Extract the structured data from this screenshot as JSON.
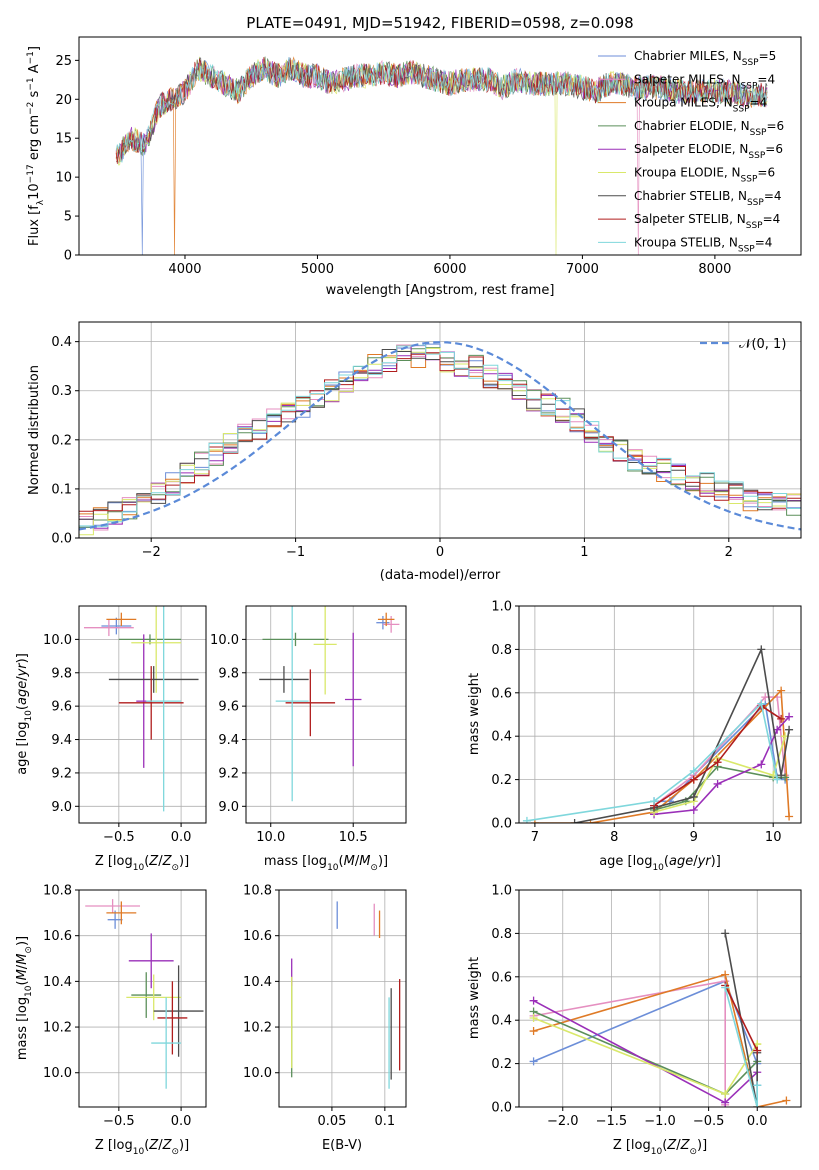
{
  "figure": {
    "title": "PLATE=0491, MJD=51942, FIBERID=0598, z=0.098"
  },
  "colors": {
    "Chabrier MILES": "#6c8ed8",
    "Salpeter MILES": "#e58fc0",
    "Kroupa MILES": "#df7a26",
    "Chabrier ELODIE": "#5b8f5a",
    "Salpeter ELODIE": "#9a2fb8",
    "Kroupa ELODIE": "#d9e86a",
    "Chabrier STELIB": "#4c4c4c",
    "Salpeter STELIB": "#b01d1d",
    "Kroupa STELIB": "#7fd7dc",
    "normal": "#5b8ad8"
  },
  "chart_data": [
    {
      "id": "spectrum",
      "type": "line",
      "title": "PLATE=0491, MJD=51942, FIBERID=0598, z=0.098",
      "xlabel": "wavelength [Angstrom, rest frame]",
      "ylabel": "Flux [f_λ 10^-17 erg cm^-2 s^-1 A^-1]",
      "xlim": [
        3200,
        8650
      ],
      "ylim": [
        0,
        28
      ],
      "xticks": [
        4000,
        5000,
        6000,
        7000,
        8000
      ],
      "yticks": [
        0,
        5,
        10,
        15,
        20,
        25
      ],
      "grid": false,
      "legend": "top-right",
      "x": [
        3500,
        3600,
        3700,
        3800,
        3900,
        4000,
        4100,
        4200,
        4300,
        4400,
        4500,
        4600,
        4700,
        4800,
        4900,
        5000,
        5100,
        5200,
        5300,
        5400,
        5500,
        5600,
        5700,
        5800,
        5900,
        6000,
        6100,
        6200,
        6300,
        6400,
        6500,
        6600,
        6700,
        6800,
        6900,
        7000,
        7100,
        7200,
        7300,
        7400,
        7500,
        7600,
        7700,
        7800,
        7900,
        8000,
        8100,
        8200,
        8300,
        8400
      ],
      "y": [
        13,
        15,
        14,
        19,
        20,
        21,
        24,
        23,
        22,
        21,
        23,
        24,
        23,
        24,
        23,
        23,
        22,
        22.5,
        23,
        23,
        23.5,
        23,
        23.5,
        23,
        22.5,
        22,
        22.5,
        22.5,
        22.5,
        21.5,
        22.5,
        22,
        22,
        22,
        22,
        21.5,
        21,
        22,
        22,
        21.5,
        21.5,
        21.5,
        21,
        21,
        21,
        21,
        21,
        20.5,
        20.5,
        20.5
      ],
      "series": [
        {
          "name": "Chabrier MILES",
          "nssp": "5"
        },
        {
          "name": "Salpeter MILES",
          "nssp": "4"
        },
        {
          "name": "Kroupa MILES",
          "nssp": "4"
        },
        {
          "name": "Chabrier ELODIE",
          "nssp": "6"
        },
        {
          "name": "Salpeter ELODIE",
          "nssp": "6"
        },
        {
          "name": "Kroupa ELODIE",
          "nssp": "6"
        },
        {
          "name": "Chabrier STELIB",
          "nssp": "4"
        },
        {
          "name": "Salpeter STELIB",
          "nssp": "4"
        },
        {
          "name": "Kroupa STELIB",
          "nssp": "4"
        }
      ]
    },
    {
      "id": "residuals",
      "type": "histogram",
      "xlabel": "(data-model)/error",
      "ylabel": "Normed distribution",
      "xlim": [
        -2.5,
        2.5
      ],
      "ylim": [
        0,
        0.44
      ],
      "xticks": [
        -2,
        -1,
        0,
        1,
        2
      ],
      "yticks": [
        0.0,
        0.1,
        0.2,
        0.3,
        0.4
      ],
      "grid": true,
      "legend": "top-right",
      "legend_entry": "𝒩(0, 1)",
      "bin_edges_start": -2.5,
      "bin_width": 0.1,
      "values": [
        0.03,
        0.04,
        0.05,
        0.06,
        0.07,
        0.09,
        0.11,
        0.13,
        0.15,
        0.17,
        0.19,
        0.21,
        0.22,
        0.24,
        0.26,
        0.27,
        0.28,
        0.3,
        0.32,
        0.34,
        0.35,
        0.36,
        0.37,
        0.37,
        0.38,
        0.36,
        0.34,
        0.35,
        0.33,
        0.32,
        0.3,
        0.28,
        0.27,
        0.26,
        0.24,
        0.22,
        0.2,
        0.18,
        0.16,
        0.15,
        0.14,
        0.13,
        0.12,
        0.11,
        0.1,
        0.09,
        0.08,
        0.08,
        0.07,
        0.07
      ]
    },
    {
      "id": "age-vs-Z",
      "type": "errorbar",
      "xlabel": "Z [log10(Z/Z⊙)]",
      "ylabel": "age [log10(age/yr)]",
      "xlim": [
        -0.82,
        0.2
      ],
      "ylim": [
        8.9,
        10.2
      ],
      "xticks": [
        -0.5,
        0.0
      ],
      "yticks": [
        9.0,
        9.2,
        9.4,
        9.6,
        9.8,
        10.0
      ],
      "grid": true,
      "points": [
        {
          "series": "Chabrier MILES",
          "x": -0.52,
          "y": 10.08,
          "xerr": 0.12,
          "yerr": 0.05
        },
        {
          "series": "Salpeter MILES",
          "x": -0.58,
          "y": 10.07,
          "xerr": 0.2,
          "yerr": 0.05
        },
        {
          "series": "Kroupa MILES",
          "x": -0.48,
          "y": 10.12,
          "xerr": 0.12,
          "yerr": 0.04
        },
        {
          "series": "Chabrier ELODIE",
          "x": -0.25,
          "y": 10.0,
          "xerr": 0.25,
          "yerr": 0.03
        },
        {
          "series": "Salpeter ELODIE",
          "x": -0.3,
          "y": 9.63,
          "xerr": 0.06,
          "yerr": 0.4
        },
        {
          "series": "Kroupa ELODIE",
          "x": -0.2,
          "y": 9.98,
          "xerr": 0.2,
          "yerr": 0.3
        },
        {
          "series": "Chabrier STELIB",
          "x": -0.22,
          "y": 9.76,
          "xerr": 0.36,
          "yerr": 0.08
        },
        {
          "series": "Salpeter STELIB",
          "x": -0.24,
          "y": 9.62,
          "xerr": 0.26,
          "yerr": 0.22
        },
        {
          "series": "Kroupa STELIB",
          "x": -0.14,
          "y": 9.63,
          "xerr": 0.14,
          "yerr": 0.66
        }
      ]
    },
    {
      "id": "age-vs-mass",
      "type": "errorbar",
      "xlabel": "mass [log10(M/M⊙)]",
      "ylabel": "",
      "xlim": [
        9.85,
        10.82
      ],
      "ylim": [
        8.9,
        10.2
      ],
      "xticks": [
        10.0,
        10.5
      ],
      "yticks": [
        9.0,
        9.2,
        9.4,
        9.6,
        9.8,
        10.0
      ],
      "grid": true,
      "points": [
        {
          "series": "Chabrier MILES",
          "x": 10.68,
          "y": 10.1,
          "xerr": 0.04,
          "yerr": 0.04
        },
        {
          "series": "Salpeter MILES",
          "x": 10.73,
          "y": 10.09,
          "xerr": 0.05,
          "yerr": 0.05
        },
        {
          "series": "Kroupa MILES",
          "x": 10.7,
          "y": 10.12,
          "xerr": 0.05,
          "yerr": 0.04
        },
        {
          "series": "Chabrier ELODIE",
          "x": 10.15,
          "y": 10.0,
          "xerr": 0.2,
          "yerr": 0.04
        },
        {
          "series": "Salpeter ELODIE",
          "x": 10.5,
          "y": 9.64,
          "xerr": 0.05,
          "yerr": 0.4
        },
        {
          "series": "Kroupa ELODIE",
          "x": 10.33,
          "y": 9.97,
          "xerr": 0.07,
          "yerr": 0.3
        },
        {
          "series": "Chabrier STELIB",
          "x": 10.08,
          "y": 9.76,
          "xerr": 0.15,
          "yerr": 0.08
        },
        {
          "series": "Salpeter STELIB",
          "x": 10.24,
          "y": 9.62,
          "xerr": 0.15,
          "yerr": 0.2
        },
        {
          "series": "Kroupa STELIB",
          "x": 10.13,
          "y": 9.63,
          "xerr": 0.1,
          "yerr": 0.6
        }
      ]
    },
    {
      "id": "mass-weight-vs-age",
      "type": "line",
      "xlabel": "age [log10(age/yr)]",
      "ylabel": "mass weight",
      "xlim": [
        6.8,
        10.35
      ],
      "ylim": [
        0,
        1.0
      ],
      "xticks": [
        7,
        8,
        9,
        10
      ],
      "yticks": [
        0.0,
        0.2,
        0.4,
        0.6,
        0.8,
        1.0
      ],
      "grid": true,
      "series": [
        {
          "name": "Chabrier MILES",
          "x": [
            8.5,
            8.7,
            9.0,
            9.9,
            10.05,
            10.15
          ],
          "y": [
            0.1,
            0.1,
            0.22,
            0.55,
            0.21,
            0.2
          ]
        },
        {
          "name": "Salpeter MILES",
          "x": [
            8.5,
            9.0,
            9.9,
            10.05,
            10.15
          ],
          "y": [
            0.08,
            0.22,
            0.58,
            0.58,
            0.22
          ]
        },
        {
          "name": "Kroupa MILES",
          "x": [
            7.0,
            7.7,
            8.5,
            9.0,
            10.1,
            10.2
          ],
          "y": [
            0.0,
            0.0,
            0.05,
            0.2,
            0.61,
            0.03
          ]
        },
        {
          "name": "Chabrier ELODIE",
          "x": [
            8.5,
            8.9,
            9.3,
            10.0,
            10.15
          ],
          "y": [
            0.06,
            0.1,
            0.26,
            0.21,
            0.21
          ]
        },
        {
          "name": "Salpeter ELODIE",
          "x": [
            8.5,
            9.0,
            9.3,
            9.85,
            10.05,
            10.2
          ],
          "y": [
            0.04,
            0.06,
            0.18,
            0.27,
            0.43,
            0.49
          ]
        },
        {
          "name": "Kroupa ELODIE",
          "x": [
            8.5,
            9.0,
            9.3,
            10.0,
            10.15
          ],
          "y": [
            0.05,
            0.1,
            0.3,
            0.22,
            0.4
          ]
        },
        {
          "name": "Chabrier STELIB",
          "x": [
            7.5,
            8.5,
            9.0,
            9.85,
            10.1,
            10.2
          ],
          "y": [
            0.0,
            0.07,
            0.12,
            0.8,
            0.22,
            0.43
          ]
        },
        {
          "name": "Salpeter STELIB",
          "x": [
            8.5,
            9.0,
            9.3,
            9.85,
            10.1
          ],
          "y": [
            0.08,
            0.2,
            0.28,
            0.54,
            0.48
          ]
        },
        {
          "name": "Kroupa STELIB",
          "x": [
            6.9,
            8.5,
            9.0,
            9.85,
            10.05
          ],
          "y": [
            0.01,
            0.1,
            0.24,
            0.55,
            0.2
          ]
        }
      ]
    },
    {
      "id": "mass-vs-Z",
      "type": "errorbar",
      "xlabel": "Z [log10(Z/Z⊙)]",
      "ylabel": "mass [log10(M/M⊙)]",
      "xlim": [
        -0.82,
        0.2
      ],
      "ylim": [
        9.85,
        10.8
      ],
      "xticks": [
        -0.5,
        0.0
      ],
      "yticks": [
        10.0,
        10.2,
        10.4,
        10.6,
        10.8
      ],
      "grid": true,
      "points": [
        {
          "series": "Chabrier MILES",
          "x": -0.53,
          "y": 10.67,
          "xerr": 0.06,
          "yerr": 0.04
        },
        {
          "series": "Salpeter MILES",
          "x": -0.55,
          "y": 10.73,
          "xerr": 0.22,
          "yerr": 0.03
        },
        {
          "series": "Kroupa MILES",
          "x": -0.48,
          "y": 10.7,
          "xerr": 0.12,
          "yerr": 0.05
        },
        {
          "series": "Chabrier ELODIE",
          "x": -0.28,
          "y": 10.34,
          "xerr": 0.12,
          "yerr": 0.1
        },
        {
          "series": "Salpeter ELODIE",
          "x": -0.24,
          "y": 10.49,
          "xerr": 0.18,
          "yerr": 0.12
        },
        {
          "series": "Kroupa ELODIE",
          "x": -0.22,
          "y": 10.33,
          "xerr": 0.22,
          "yerr": 0.1
        },
        {
          "series": "Chabrier STELIB",
          "x": -0.02,
          "y": 10.27,
          "xerr": 0.2,
          "yerr": 0.2
        },
        {
          "series": "Salpeter STELIB",
          "x": -0.07,
          "y": 10.24,
          "xerr": 0.12,
          "yerr": 0.16
        },
        {
          "series": "Kroupa STELIB",
          "x": -0.12,
          "y": 10.13,
          "xerr": 0.12,
          "yerr": 0.2
        }
      ]
    },
    {
      "id": "mass-vs-EBV",
      "type": "errorbar",
      "xlabel": "E(B-V)",
      "ylabel": "",
      "xlim": [
        0.0,
        0.12
      ],
      "ylim": [
        9.85,
        10.8
      ],
      "xticks": [
        0.05,
        0.1
      ],
      "yticks": [
        10.0,
        10.2,
        10.4,
        10.6,
        10.8
      ],
      "grid": true,
      "points": [
        {
          "series": "Chabrier MILES",
          "x": 0.055,
          "y": 10.69,
          "xerr": 0.0,
          "yerr": 0.06
        },
        {
          "series": "Salpeter MILES",
          "x": 0.09,
          "y": 10.67,
          "xerr": 0.0,
          "yerr": 0.07
        },
        {
          "series": "Kroupa MILES",
          "x": 0.095,
          "y": 10.65,
          "xerr": 0.0,
          "yerr": 0.06
        },
        {
          "series": "Chabrier ELODIE",
          "x": 0.012,
          "y": 10.2,
          "xerr": 0.0,
          "yerr": 0.22
        },
        {
          "series": "Salpeter ELODIE",
          "x": 0.012,
          "y": 10.44,
          "xerr": 0.0,
          "yerr": 0.06
        },
        {
          "series": "Kroupa ELODIE",
          "x": 0.012,
          "y": 10.22,
          "xerr": 0.0,
          "yerr": 0.2
        },
        {
          "series": "Chabrier STELIB",
          "x": 0.106,
          "y": 10.17,
          "xerr": 0.0,
          "yerr": 0.2
        },
        {
          "series": "Salpeter STELIB",
          "x": 0.114,
          "y": 10.21,
          "xerr": 0.0,
          "yerr": 0.2
        },
        {
          "series": "Kroupa STELIB",
          "x": 0.104,
          "y": 10.13,
          "xerr": 0.0,
          "yerr": 0.2
        }
      ]
    },
    {
      "id": "mass-weight-vs-Z",
      "type": "line",
      "xlabel": "Z [log10(Z/Z⊙)]",
      "ylabel": "mass weight",
      "xlim": [
        -2.45,
        0.45
      ],
      "ylim": [
        0,
        1.0
      ],
      "xticks": [
        -2.0,
        -1.5,
        -1.0,
        -0.5,
        0.0
      ],
      "yticks": [
        0.0,
        0.2,
        0.4,
        0.6,
        0.8,
        1.0
      ],
      "grid": true,
      "series": [
        {
          "name": "Chabrier MILES",
          "x": [
            -2.3,
            -0.33,
            0.0,
            0.0
          ],
          "y": [
            0.21,
            0.58,
            0.2,
            0.1
          ]
        },
        {
          "name": "Salpeter MILES",
          "x": [
            -2.3,
            -0.33,
            -0.33
          ],
          "y": [
            0.42,
            0.58,
            0.01
          ]
        },
        {
          "name": "Kroupa MILES",
          "x": [
            -2.3,
            -0.33,
            0.0,
            0.3
          ],
          "y": [
            0.35,
            0.61,
            0.0,
            0.03
          ]
        },
        {
          "name": "Chabrier ELODIE",
          "x": [
            -2.3,
            -0.33,
            0.0
          ],
          "y": [
            0.44,
            0.06,
            0.21
          ]
        },
        {
          "name": "Salpeter ELODIE",
          "x": [
            -2.3,
            -0.33,
            0.0
          ],
          "y": [
            0.49,
            0.02,
            0.16
          ]
        },
        {
          "name": "Kroupa ELODIE",
          "x": [
            -2.3,
            -0.33,
            0.0,
            0.0
          ],
          "y": [
            0.41,
            0.06,
            0.29,
            0.29
          ]
        },
        {
          "name": "Chabrier STELIB",
          "x": [
            -0.33,
            0.0,
            0.0
          ],
          "y": [
            0.8,
            0.0,
            0.25
          ]
        },
        {
          "name": "Salpeter STELIB",
          "x": [
            -0.33,
            0.0
          ],
          "y": [
            0.56,
            0.26
          ]
        },
        {
          "name": "Kroupa STELIB",
          "x": [
            -0.33,
            0.0,
            0.0
          ],
          "y": [
            0.55,
            0.0,
            0.1
          ]
        }
      ]
    }
  ]
}
